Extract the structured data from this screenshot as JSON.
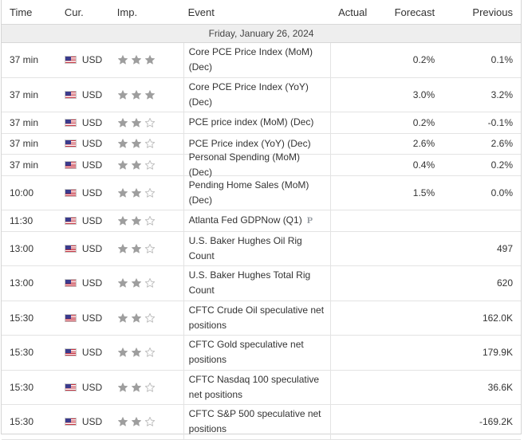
{
  "headers": {
    "time": "Time",
    "currency": "Cur.",
    "importance": "Imp.",
    "event": "Event",
    "actual": "Actual",
    "forecast": "Forecast",
    "previous": "Previous"
  },
  "day_label": "Friday, January 26, 2024",
  "rows": [
    {
      "time": "37 min",
      "currency": "USD",
      "importance": 3,
      "event": "Core PCE Price Index (MoM) (Dec)",
      "actual": "",
      "forecast": "0.2%",
      "previous": "0.1%",
      "tall": true
    },
    {
      "time": "37 min",
      "currency": "USD",
      "importance": 3,
      "event": "Core PCE Price Index (YoY) (Dec)",
      "actual": "",
      "forecast": "3.0%",
      "previous": "3.2%",
      "tall": true
    },
    {
      "time": "37 min",
      "currency": "USD",
      "importance": 2,
      "event": "PCE price index (MoM) (Dec)",
      "actual": "",
      "forecast": "0.2%",
      "previous": "-0.1%",
      "tall": false
    },
    {
      "time": "37 min",
      "currency": "USD",
      "importance": 2,
      "event": "PCE Price index (YoY) (Dec)",
      "actual": "",
      "forecast": "2.6%",
      "previous": "2.6%",
      "tall": false
    },
    {
      "time": "37 min",
      "currency": "USD",
      "importance": 2,
      "event": "Personal Spending (MoM) (Dec)",
      "actual": "",
      "forecast": "0.4%",
      "previous": "0.2%",
      "tall": false
    },
    {
      "time": "10:00",
      "currency": "USD",
      "importance": 2,
      "event": "Pending Home Sales (MoM) (Dec)",
      "actual": "",
      "forecast": "1.5%",
      "previous": "0.0%",
      "tall": true
    },
    {
      "time": "11:30",
      "currency": "USD",
      "importance": 2,
      "event": "Atlanta Fed GDPNow (Q1)",
      "badge": "P",
      "actual": "",
      "forecast": "",
      "previous": "",
      "tall": false
    },
    {
      "time": "13:00",
      "currency": "USD",
      "importance": 2,
      "event": "U.S. Baker Hughes Oil Rig Count",
      "actual": "",
      "forecast": "",
      "previous": "497",
      "tall": true
    },
    {
      "time": "13:00",
      "currency": "USD",
      "importance": 2,
      "event": "U.S. Baker Hughes Total Rig Count",
      "actual": "",
      "forecast": "",
      "previous": "620",
      "tall": true
    },
    {
      "time": "15:30",
      "currency": "USD",
      "importance": 2,
      "event": "CFTC Crude Oil speculative net positions",
      "actual": "",
      "forecast": "",
      "previous": "162.0K",
      "tall": true
    },
    {
      "time": "15:30",
      "currency": "USD",
      "importance": 2,
      "event": "CFTC Gold speculative net positions",
      "actual": "",
      "forecast": "",
      "previous": "179.9K",
      "tall": true
    },
    {
      "time": "15:30",
      "currency": "USD",
      "importance": 2,
      "event": "CFTC Nasdaq 100 speculative net positions",
      "actual": "",
      "forecast": "",
      "previous": "36.6K",
      "tall": true
    },
    {
      "time": "15:30",
      "currency": "USD",
      "importance": 2,
      "event": "CFTC S&P 500 speculative net positions",
      "actual": "",
      "forecast": "",
      "previous": "-169.2K",
      "tall": true
    }
  ],
  "icons": {
    "flag": "us-flag-icon",
    "star_filled": "star-filled-icon",
    "star_empty": "star-empty-icon",
    "preliminary_badge": "preliminary-badge-icon"
  },
  "colors": {
    "star_filled": "#9e9e9e",
    "star_empty": "#bdbdbd",
    "day_row_bg": "#eeeeee",
    "text": "#333333"
  }
}
